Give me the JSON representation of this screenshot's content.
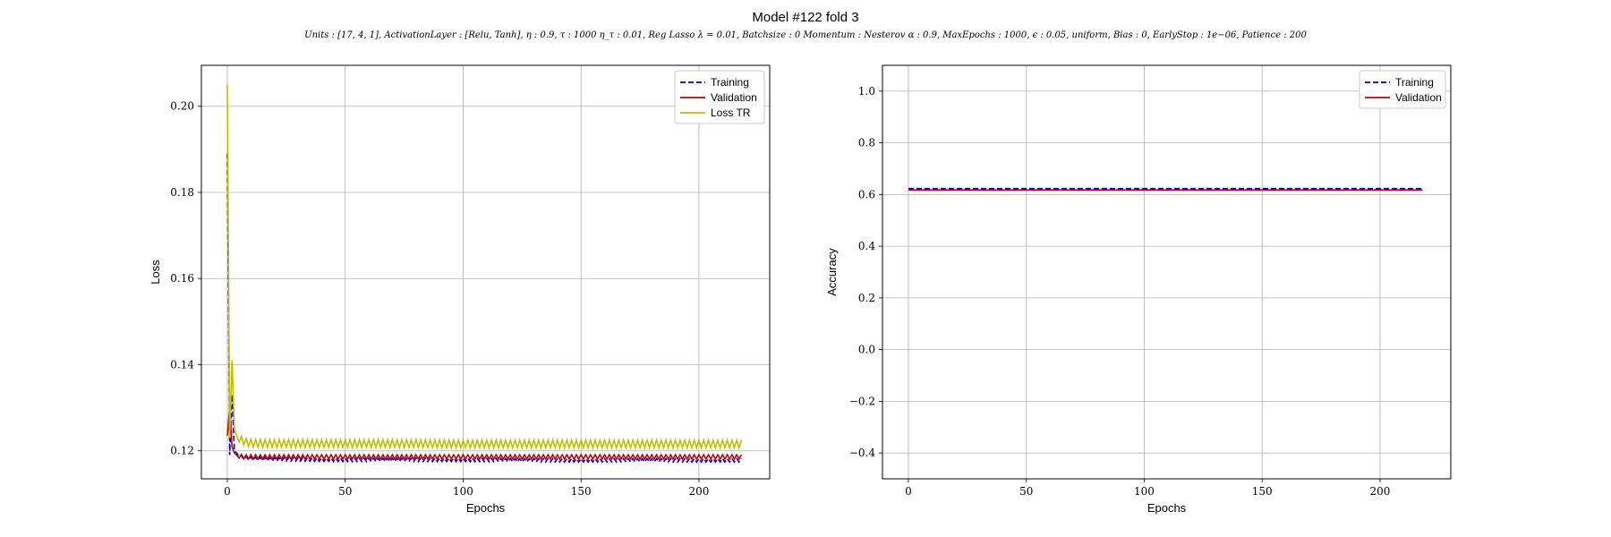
{
  "figure": {
    "title": "Model #122 fold 3",
    "subtitle": "Units : [17, 4, 1], ActivationLayer : [Relu, Tanh], η : 0.9, τ : 1000 η_τ : 0.01, Reg Lasso λ = 0.01, Batchsize : 0 Momentum : Nesterov α : 0.9, MaxEpochs : 1000, ϵ : 0.05, uniform, Bias : 0, EarlyStop : 1e−06, Patience : 200"
  },
  "colors": {
    "training": "#0000cc",
    "validation": "#cc0000",
    "loss_tr": "#bfbf00",
    "grid": "#b0b0b0",
    "axis": "#000000"
  },
  "chart_data": [
    {
      "type": "line",
      "panel": "loss",
      "title": "",
      "xlabel": "Epochs",
      "ylabel": "Loss",
      "xlim": [
        -11,
        230
      ],
      "ylim": [
        0.1135,
        0.2095
      ],
      "xticks": [
        0,
        50,
        100,
        150,
        200
      ],
      "xtick_labels": [
        "0",
        "50",
        "100",
        "150",
        "200"
      ],
      "yticks": [
        0.12,
        0.14,
        0.16,
        0.18,
        0.2
      ],
      "ytick_labels": [
        "0.12",
        "0.14",
        "0.16",
        "0.18",
        "0.20"
      ],
      "grid": true,
      "legend": "top-right",
      "series": [
        {
          "name": "Training",
          "style": "dashed",
          "x": [
            0,
            1,
            2,
            3,
            4,
            5,
            6,
            8,
            10,
            15,
            20,
            30,
            50,
            75,
            100,
            125,
            150,
            175,
            200,
            218
          ],
          "y": [
            0.189,
            0.119,
            0.133,
            0.12,
            0.1195,
            0.119,
            0.1185,
            0.1183,
            0.1182,
            0.1181,
            0.118,
            0.118,
            0.1179,
            0.1179,
            0.1179,
            0.1178,
            0.1178,
            0.1178,
            0.1178,
            0.1178
          ],
          "oscillation": 0.0004
        },
        {
          "name": "Validation",
          "style": "solid",
          "x": [
            0,
            1,
            2,
            3,
            4,
            5,
            6,
            8,
            10,
            15,
            20,
            30,
            50,
            75,
            100,
            125,
            150,
            175,
            200,
            218
          ],
          "y": [
            0.1235,
            0.13,
            0.121,
            0.1195,
            0.119,
            0.1188,
            0.1187,
            0.1186,
            0.1186,
            0.1186,
            0.1186,
            0.1186,
            0.1186,
            0.1186,
            0.1186,
            0.1186,
            0.1186,
            0.1186,
            0.1186,
            0.1186
          ],
          "oscillation": 0.0005
        },
        {
          "name": "Loss TR",
          "style": "solid",
          "x": [
            0,
            1,
            2,
            3,
            4,
            5,
            6,
            8,
            10,
            15,
            20,
            30,
            50,
            75,
            100,
            125,
            150,
            175,
            200,
            218
          ],
          "y": [
            0.205,
            0.123,
            0.141,
            0.125,
            0.1235,
            0.123,
            0.1225,
            0.122,
            0.1218,
            0.1217,
            0.1217,
            0.1217,
            0.1217,
            0.1217,
            0.1216,
            0.1216,
            0.1216,
            0.1216,
            0.1216,
            0.1216
          ],
          "oscillation": 0.0009
        }
      ]
    },
    {
      "type": "line",
      "panel": "accuracy",
      "title": "",
      "xlabel": "Epochs",
      "ylabel": "Accuracy",
      "xlim": [
        -11,
        230
      ],
      "ylim": [
        -0.5,
        1.1
      ],
      "xticks": [
        0,
        50,
        100,
        150,
        200
      ],
      "xtick_labels": [
        "0",
        "50",
        "100",
        "150",
        "200"
      ],
      "yticks": [
        -0.4,
        -0.2,
        0.0,
        0.2,
        0.4,
        0.6,
        0.8,
        1.0
      ],
      "ytick_labels": [
        "−0.4",
        "−0.2",
        "0.0",
        "0.2",
        "0.4",
        "0.6",
        "0.8",
        "1.0"
      ],
      "grid": true,
      "legend": "top-right",
      "series": [
        {
          "name": "Training",
          "style": "dashed",
          "x": [
            0,
            218
          ],
          "y": [
            0.623,
            0.623
          ],
          "oscillation": 0
        },
        {
          "name": "Validation",
          "style": "solid",
          "x": [
            0,
            218
          ],
          "y": [
            0.618,
            0.618
          ],
          "oscillation": 0
        }
      ]
    }
  ]
}
